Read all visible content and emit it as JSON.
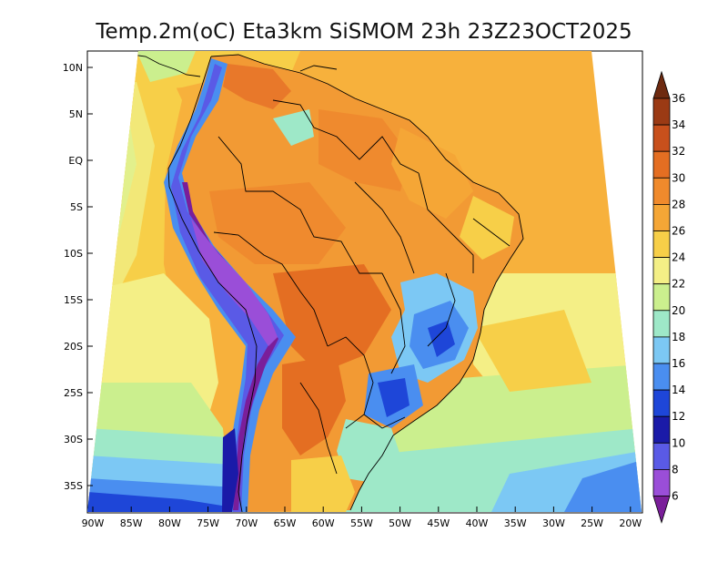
{
  "title": "Temp.2m(oC) Eta3km SiSMOM 23h 23Z23OCT2025",
  "lat_ticks": [
    "10N",
    "5N",
    "EQ",
    "5S",
    "10S",
    "15S",
    "20S",
    "25S",
    "30S",
    "35S"
  ],
  "lon_ticks": [
    "90W",
    "85W",
    "80W",
    "75W",
    "70W",
    "65W",
    "60W",
    "55W",
    "50W",
    "45W",
    "40W",
    "35W",
    "30W",
    "25W",
    "20W"
  ],
  "colorbar": {
    "labels": [
      "36",
      "34",
      "32",
      "30",
      "28",
      "26",
      "24",
      "22",
      "20",
      "18",
      "16",
      "14",
      "12",
      "10",
      "8",
      "6"
    ],
    "colors_top_to_bottom": [
      "#6e2a10",
      "#9b3a14",
      "#c8501c",
      "#e46e22",
      "#f08a2c",
      "#f5a636",
      "#f7cf48",
      "#f4ef86",
      "#cbef8e",
      "#9ee8c8",
      "#7cc8f4",
      "#4a8ef0",
      "#1e46d8",
      "#1a1aa8",
      "#5a5ae6",
      "#9a4ed8",
      "#7a1e9a"
    ]
  }
}
